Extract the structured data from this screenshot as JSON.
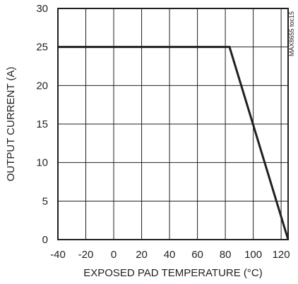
{
  "chart_data": {
    "type": "line",
    "xlabel": "EXPOSED PAD TEMPERATURE (°C)",
    "ylabel": "OUTPUT CURRENT (A)",
    "figure_id": "MAX8655 toc15",
    "xlim": [
      -40,
      125
    ],
    "ylim": [
      0,
      30
    ],
    "x_ticks": [
      -40,
      -20,
      0,
      20,
      40,
      60,
      80,
      100,
      120
    ],
    "y_ticks": [
      0,
      5,
      10,
      15,
      20,
      25,
      30
    ],
    "grid": true,
    "line_color": "#231f20",
    "series": [
      {
        "x": [
          -40,
          83,
          125
        ],
        "y": [
          25,
          25,
          0
        ]
      }
    ]
  }
}
